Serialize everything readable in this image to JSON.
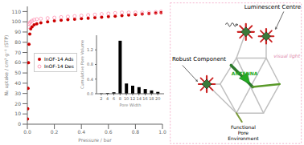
{
  "chart_data": [
    {
      "type": "scatter",
      "x_label": "Pressure / bar",
      "y_label": "N₂ uptake / cm³ g⁻¹ (STP)",
      "xlim": [
        0.0,
        1.0
      ],
      "ylim": [
        0,
        115
      ],
      "xticks": [
        {
          "value": 0,
          "label": "0.0"
        },
        0.2,
        0.4,
        0.6,
        0.8,
        {
          "value": 1,
          "label": "1.0"
        }
      ],
      "yticks": [
        0,
        10,
        20,
        30,
        40,
        50,
        60,
        70,
        80,
        90,
        100,
        110
      ],
      "grid": false,
      "series": [
        {
          "name": "InOF-14 Ads",
          "color": "#cc0000",
          "marker": "circle",
          "x": [
            0.001,
            0.003,
            0.005,
            0.008,
            0.012,
            0.018,
            0.025,
            0.035,
            0.05,
            0.07,
            0.1,
            0.15,
            0.2,
            0.25,
            0.3,
            0.35,
            0.4,
            0.45,
            0.5,
            0.55,
            0.6,
            0.65,
            0.7,
            0.75,
            0.8,
            0.85,
            0.9,
            0.95,
            0.99
          ],
          "values": [
            5,
            15,
            35,
            60,
            78,
            88,
            93,
            95,
            97,
            98,
            99,
            100,
            101,
            101.5,
            102,
            102.5,
            103,
            103.5,
            104,
            104.5,
            105,
            105.5,
            106,
            106.5,
            107,
            107.5,
            108,
            108.5,
            109
          ]
        },
        {
          "name": "InOF-14 Des",
          "color": "#ff88aa",
          "marker": "open_circle",
          "x": [
            0.99,
            0.95,
            0.9,
            0.85,
            0.8,
            0.75,
            0.7,
            0.65,
            0.6,
            0.55,
            0.5,
            0.45,
            0.4,
            0.35,
            0.3,
            0.25,
            0.2,
            0.15,
            0.1,
            0.07,
            0.05,
            0.035,
            0.025,
            0.018,
            0.012,
            0.008
          ],
          "values": [
            110,
            109.5,
            109,
            109,
            109,
            109,
            109,
            108.5,
            108,
            107.5,
            107,
            106.5,
            106,
            105.5,
            105,
            104.5,
            104,
            103.5,
            103,
            102.5,
            102,
            101,
            100,
            99,
            98,
            95
          ]
        }
      ],
      "annotations": [
        {
          "text": "Luminescent Centre"
        },
        {
          "text": "Robust Component"
        },
        {
          "text": "Functional\nPore\nEnvironment"
        },
        {
          "text": "ANTENNA",
          "color": "#22aa22"
        },
        {
          "text": "visual light",
          "color": "#dd88aa"
        }
      ]
    },
    {
      "type": "bar",
      "x_label": "Pore Width",
      "y_label": "Cumulative Pore Volume",
      "x": [
        2,
        4,
        6,
        8,
        10,
        12,
        14,
        16,
        18,
        20
      ],
      "values": [
        0.01,
        0.02,
        0.04,
        1.45,
        0.28,
        0.22,
        0.18,
        0.13,
        0.09,
        0.05
      ],
      "color": "#000000",
      "xlim": [
        0.5,
        22
      ],
      "ylim": [
        0,
        1.6
      ],
      "xticks": [
        2,
        4,
        6,
        8,
        10,
        12,
        14,
        16,
        18,
        20
      ],
      "yticks": [
        {
          "value": 0,
          "label": "0.0"
        },
        0.4,
        0.8,
        1.2
      ],
      "grid": false
    }
  ]
}
